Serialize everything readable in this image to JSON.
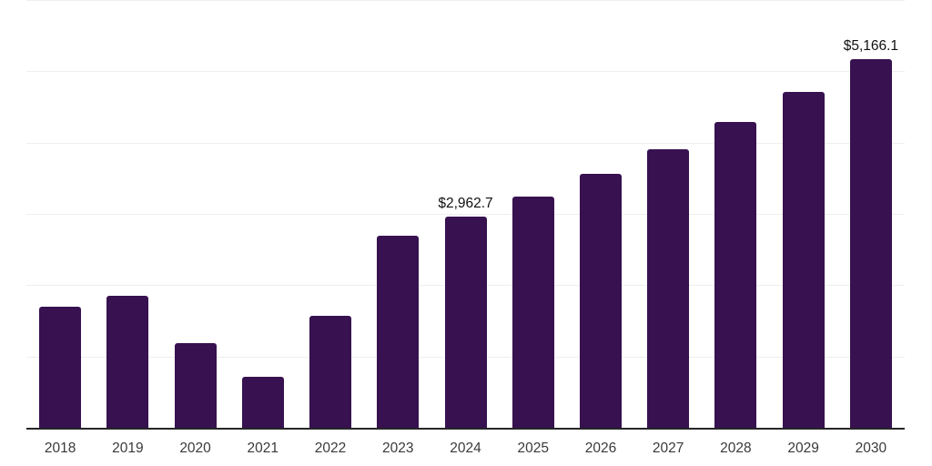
{
  "chart_data": {
    "type": "bar",
    "title": "",
    "xlabel": "",
    "ylabel": "",
    "categories": [
      "2018",
      "2019",
      "2020",
      "2021",
      "2022",
      "2023",
      "2024",
      "2025",
      "2026",
      "2027",
      "2028",
      "2029",
      "2030"
    ],
    "values": [
      1695,
      1845,
      1190,
      715,
      1575,
      2700,
      2962.7,
      3245,
      3560,
      3910,
      4290,
      4710,
      5166.1
    ],
    "data_labels": [
      null,
      null,
      null,
      null,
      null,
      null,
      "$2,962.7",
      null,
      null,
      null,
      null,
      null,
      "$5,166.1"
    ],
    "ylim": [
      0,
      6000
    ],
    "gridline_step": 1000,
    "grid": "horizontal-only",
    "legend": "none",
    "colors": {
      "bar": "#371150",
      "axis_line": "#262626",
      "gridline": "#efefef",
      "x_axis_label": "#3a3a3a",
      "data_label": "#111111",
      "background": "#ffffff"
    }
  }
}
